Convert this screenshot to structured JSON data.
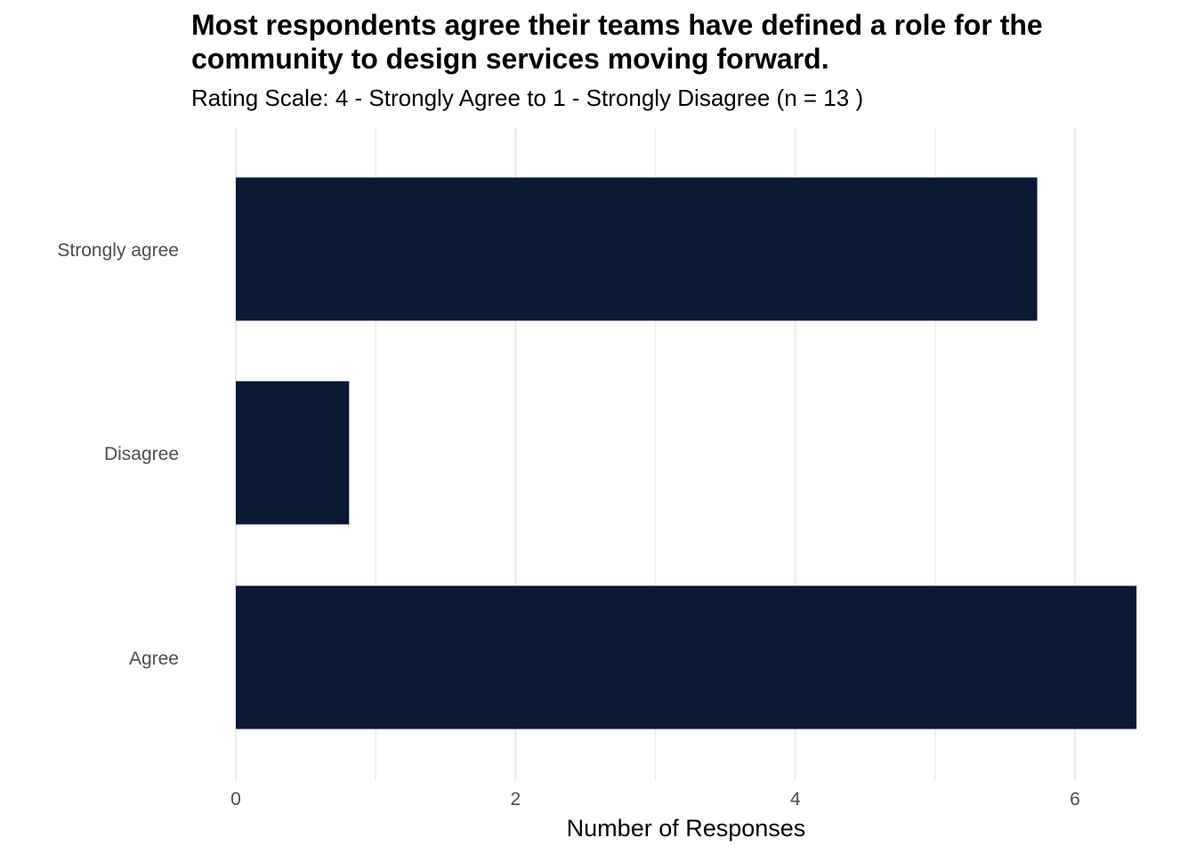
{
  "chart_data": {
    "type": "bar",
    "orientation": "horizontal",
    "title": "Most respondents agree their teams have defined a role for the community to design services moving forward.",
    "subtitle": "Rating Scale: 4 - Strongly Agree to 1 - Strongly Disagree (n = 13 )",
    "xlabel": "Number of Responses",
    "ylabel": "",
    "categories": [
      "Strongly agree",
      "Disagree",
      "Agree"
    ],
    "values": [
      5.73,
      0.81,
      6.44
    ],
    "xlim": [
      0,
      6.5
    ],
    "xticks": [
      "0",
      "2",
      "4",
      "6"
    ],
    "grid": true,
    "legend": "none",
    "bar_color": "#0a1833"
  }
}
